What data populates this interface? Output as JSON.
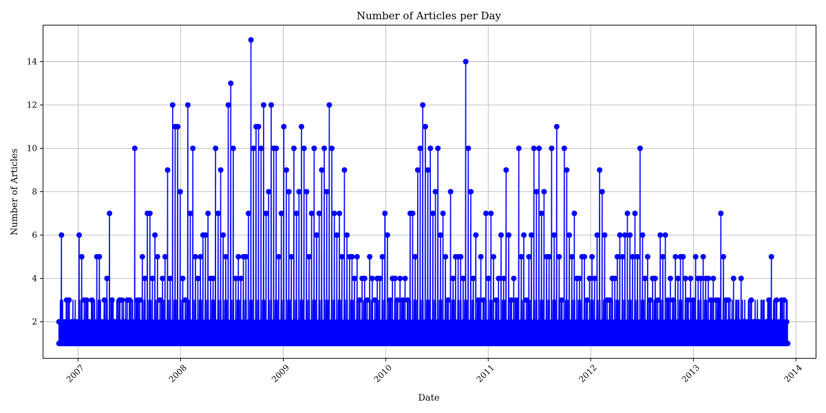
{
  "chart_data": {
    "type": "line",
    "title": "Number of Articles per Day",
    "xlabel": "Date",
    "ylabel": "Number of Articles",
    "x_ticks": [
      "2007",
      "2008",
      "2009",
      "2010",
      "2011",
      "2012",
      "2013",
      "2014"
    ],
    "y_ticks": [
      2,
      4,
      6,
      8,
      10,
      12,
      14
    ],
    "xlim": [
      "2006-08-28",
      "2014-03-15"
    ],
    "ylim": [
      0.3,
      15.7
    ],
    "grid": true,
    "marker": "circle",
    "color": "#0000ff",
    "series": [
      {
        "x": [
          "2006-10-25",
          "2006-11-03",
          "2006-11-12",
          "2006-11-21",
          "2006-11-30",
          "2006-12-09",
          "2006-12-18",
          "2006-12-27",
          "2007-01-05",
          "2007-01-14",
          "2007-01-23",
          "2007-02-01",
          "2007-02-10",
          "2007-02-19",
          "2007-02-28",
          "2007-03-09",
          "2007-03-18",
          "2007-03-27",
          "2007-04-05",
          "2007-04-14",
          "2007-04-23",
          "2007-05-02",
          "2007-05-11",
          "2007-05-20",
          "2007-05-29",
          "2007-06-07",
          "2007-06-16",
          "2007-06-25",
          "2007-07-04",
          "2007-07-13",
          "2007-07-22",
          "2007-07-31",
          "2007-08-09",
          "2007-08-18",
          "2007-08-27",
          "2007-09-05",
          "2007-09-14",
          "2007-09-23",
          "2007-10-02",
          "2007-10-11",
          "2007-10-20",
          "2007-10-29",
          "2007-11-07",
          "2007-11-16",
          "2007-11-25",
          "2007-12-04",
          "2007-12-13",
          "2007-12-22",
          "2007-12-31",
          "2008-01-09",
          "2008-01-18",
          "2008-01-27",
          "2008-02-05",
          "2008-02-14",
          "2008-02-23",
          "2008-03-03",
          "2008-03-12",
          "2008-03-21",
          "2008-03-30",
          "2008-04-08",
          "2008-04-17",
          "2008-04-26",
          "2008-05-05",
          "2008-05-14",
          "2008-05-23",
          "2008-06-01",
          "2008-06-10",
          "2008-06-19",
          "2008-06-28",
          "2008-07-07",
          "2008-07-16",
          "2008-07-25",
          "2008-08-03",
          "2008-08-12",
          "2008-08-21",
          "2008-08-30",
          "2008-09-08",
          "2008-09-17",
          "2008-09-26",
          "2008-10-05",
          "2008-10-14",
          "2008-10-23",
          "2008-11-01",
          "2008-11-10",
          "2008-11-19",
          "2008-11-28",
          "2008-12-07",
          "2008-12-16",
          "2008-12-25",
          "2009-01-03",
          "2009-01-12",
          "2009-01-21",
          "2009-01-30",
          "2009-02-08",
          "2009-02-17",
          "2009-02-26",
          "2009-03-07",
          "2009-03-16",
          "2009-03-25",
          "2009-04-03",
          "2009-04-12",
          "2009-04-21",
          "2009-04-30",
          "2009-05-09",
          "2009-05-18",
          "2009-05-27",
          "2009-06-05",
          "2009-06-14",
          "2009-06-23",
          "2009-07-02",
          "2009-07-11",
          "2009-07-20",
          "2009-07-29",
          "2009-08-07",
          "2009-08-16",
          "2009-08-25",
          "2009-09-03",
          "2009-09-12",
          "2009-09-21",
          "2009-09-30",
          "2009-10-09",
          "2009-10-18",
          "2009-10-27",
          "2009-11-05",
          "2009-11-14",
          "2009-11-23",
          "2009-12-02",
          "2009-12-11",
          "2009-12-20",
          "2009-12-29",
          "2010-01-07",
          "2010-01-16",
          "2010-01-25",
          "2010-02-03",
          "2010-02-12",
          "2010-02-21",
          "2010-03-02",
          "2010-03-11",
          "2010-03-20",
          "2010-03-29",
          "2010-04-07",
          "2010-04-16",
          "2010-04-25",
          "2010-05-04",
          "2010-05-13",
          "2010-05-22",
          "2010-05-31",
          "2010-06-09",
          "2010-06-18",
          "2010-06-27",
          "2010-07-06",
          "2010-07-15",
          "2010-07-24",
          "2010-08-02",
          "2010-08-11",
          "2010-08-20",
          "2010-08-29",
          "2010-09-07",
          "2010-09-16",
          "2010-09-25",
          "2010-10-04",
          "2010-10-13",
          "2010-10-22",
          "2010-10-31",
          "2010-11-09",
          "2010-11-18",
          "2010-11-27",
          "2010-12-06",
          "2010-12-15",
          "2010-12-24",
          "2011-01-02",
          "2011-01-11",
          "2011-01-20",
          "2011-01-29",
          "2011-02-07",
          "2011-02-16",
          "2011-02-25",
          "2011-03-06",
          "2011-03-15",
          "2011-03-24",
          "2011-04-02",
          "2011-04-11",
          "2011-04-20",
          "2011-04-29",
          "2011-05-08",
          "2011-05-17",
          "2011-05-26",
          "2011-06-04",
          "2011-06-13",
          "2011-06-22",
          "2011-07-01",
          "2011-07-10",
          "2011-07-19",
          "2011-07-28",
          "2011-08-06",
          "2011-08-15",
          "2011-08-24",
          "2011-09-02",
          "2011-09-11",
          "2011-09-20",
          "2011-09-29",
          "2011-10-08",
          "2011-10-17",
          "2011-10-26",
          "2011-11-04",
          "2011-11-13",
          "2011-11-22",
          "2011-12-01",
          "2011-12-10",
          "2011-12-19",
          "2011-12-28",
          "2012-01-06",
          "2012-01-15",
          "2012-01-24",
          "2012-02-02",
          "2012-02-11",
          "2012-02-20",
          "2012-02-29",
          "2012-03-09",
          "2012-03-18",
          "2012-03-27",
          "2012-04-05",
          "2012-04-14",
          "2012-04-23",
          "2012-05-02",
          "2012-05-11",
          "2012-05-20",
          "2012-05-29",
          "2012-06-07",
          "2012-06-16",
          "2012-06-25",
          "2012-07-04",
          "2012-07-13",
          "2012-07-22",
          "2012-07-31",
          "2012-08-09",
          "2012-08-18",
          "2012-08-27",
          "2012-09-05",
          "2012-09-14",
          "2012-09-23",
          "2012-10-02",
          "2012-10-11",
          "2012-10-20",
          "2012-10-29",
          "2012-11-07",
          "2012-11-16",
          "2012-11-25",
          "2012-12-04",
          "2012-12-13",
          "2012-12-22",
          "2012-12-31",
          "2013-01-09",
          "2013-01-18",
          "2013-01-27",
          "2013-02-05",
          "2013-02-14",
          "2013-02-23",
          "2013-03-04",
          "2013-03-13",
          "2013-03-22",
          "2013-03-31",
          "2013-04-09",
          "2013-04-18",
          "2013-04-27",
          "2013-05-06",
          "2013-05-15",
          "2013-05-24",
          "2013-06-02",
          "2013-06-11",
          "2013-06-20",
          "2013-06-29",
          "2013-07-08",
          "2013-07-17",
          "2013-07-26",
          "2013-08-04",
          "2013-08-13",
          "2013-08-22",
          "2013-08-31",
          "2013-09-09",
          "2013-09-18",
          "2013-09-27",
          "2013-10-06",
          "2013-10-15",
          "2013-10-24",
          "2013-11-02",
          "2013-11-11",
          "2013-11-20",
          "2013-11-29"
        ],
        "y": [
          2,
          6,
          2,
          3,
          3,
          2,
          2,
          2,
          6,
          5,
          3,
          3,
          2,
          3,
          2,
          5,
          5,
          2,
          3,
          4,
          7,
          3,
          2,
          2,
          3,
          3,
          2,
          3,
          3,
          2,
          10,
          3,
          3,
          5,
          4,
          7,
          7,
          4,
          6,
          5,
          3,
          4,
          5,
          9,
          4,
          12,
          11,
          11,
          8,
          4,
          3,
          12,
          7,
          10,
          5,
          4,
          5,
          6,
          6,
          7,
          4,
          4,
          10,
          7,
          9,
          6,
          5,
          12,
          13,
          10,
          4,
          5,
          4,
          5,
          5,
          7,
          15,
          10,
          11,
          11,
          10,
          12,
          7,
          8,
          12,
          10,
          10,
          5,
          7,
          11,
          9,
          8,
          5,
          10,
          7,
          8,
          11,
          10,
          8,
          5,
          7,
          10,
          6,
          7,
          9,
          10,
          8,
          12,
          10,
          7,
          6,
          7,
          5,
          9,
          6,
          5,
          5,
          4,
          5,
          3,
          4,
          4,
          3,
          5,
          4,
          3,
          4,
          4,
          5,
          7,
          6,
          3,
          4,
          4,
          3,
          4,
          3,
          4,
          3,
          7,
          7,
          5,
          9,
          10,
          12,
          11,
          9,
          10,
          7,
          8,
          10,
          6,
          7,
          5,
          3,
          8,
          4,
          5,
          5,
          5,
          4,
          14,
          10,
          8,
          4,
          6,
          3,
          5,
          3,
          7,
          4,
          7,
          5,
          3,
          4,
          6,
          4,
          9,
          6,
          3,
          4,
          3,
          10,
          5,
          6,
          3,
          5,
          6,
          10,
          8,
          10,
          7,
          8,
          5,
          5,
          10,
          6,
          11,
          5,
          3,
          10,
          9,
          6,
          5,
          7,
          4,
          4,
          5,
          5,
          3,
          4,
          5,
          4,
          6,
          9,
          8,
          6,
          3,
          3,
          4,
          4,
          5,
          6,
          5,
          6,
          7,
          6,
          5,
          7,
          5,
          10,
          6,
          4,
          5,
          3,
          4,
          4,
          3,
          6,
          5,
          6,
          3,
          4,
          3,
          5,
          4,
          5,
          5,
          4,
          3,
          4,
          3,
          5,
          4,
          4,
          5,
          4,
          4,
          3,
          4,
          3,
          3,
          7,
          5,
          3,
          3,
          2,
          4,
          2,
          2,
          4,
          2,
          2,
          2,
          3,
          2,
          2,
          2,
          2,
          2,
          2,
          3,
          5,
          2,
          3,
          2,
          3,
          3,
          2
        ]
      }
    ],
    "floor_value": 1
  }
}
